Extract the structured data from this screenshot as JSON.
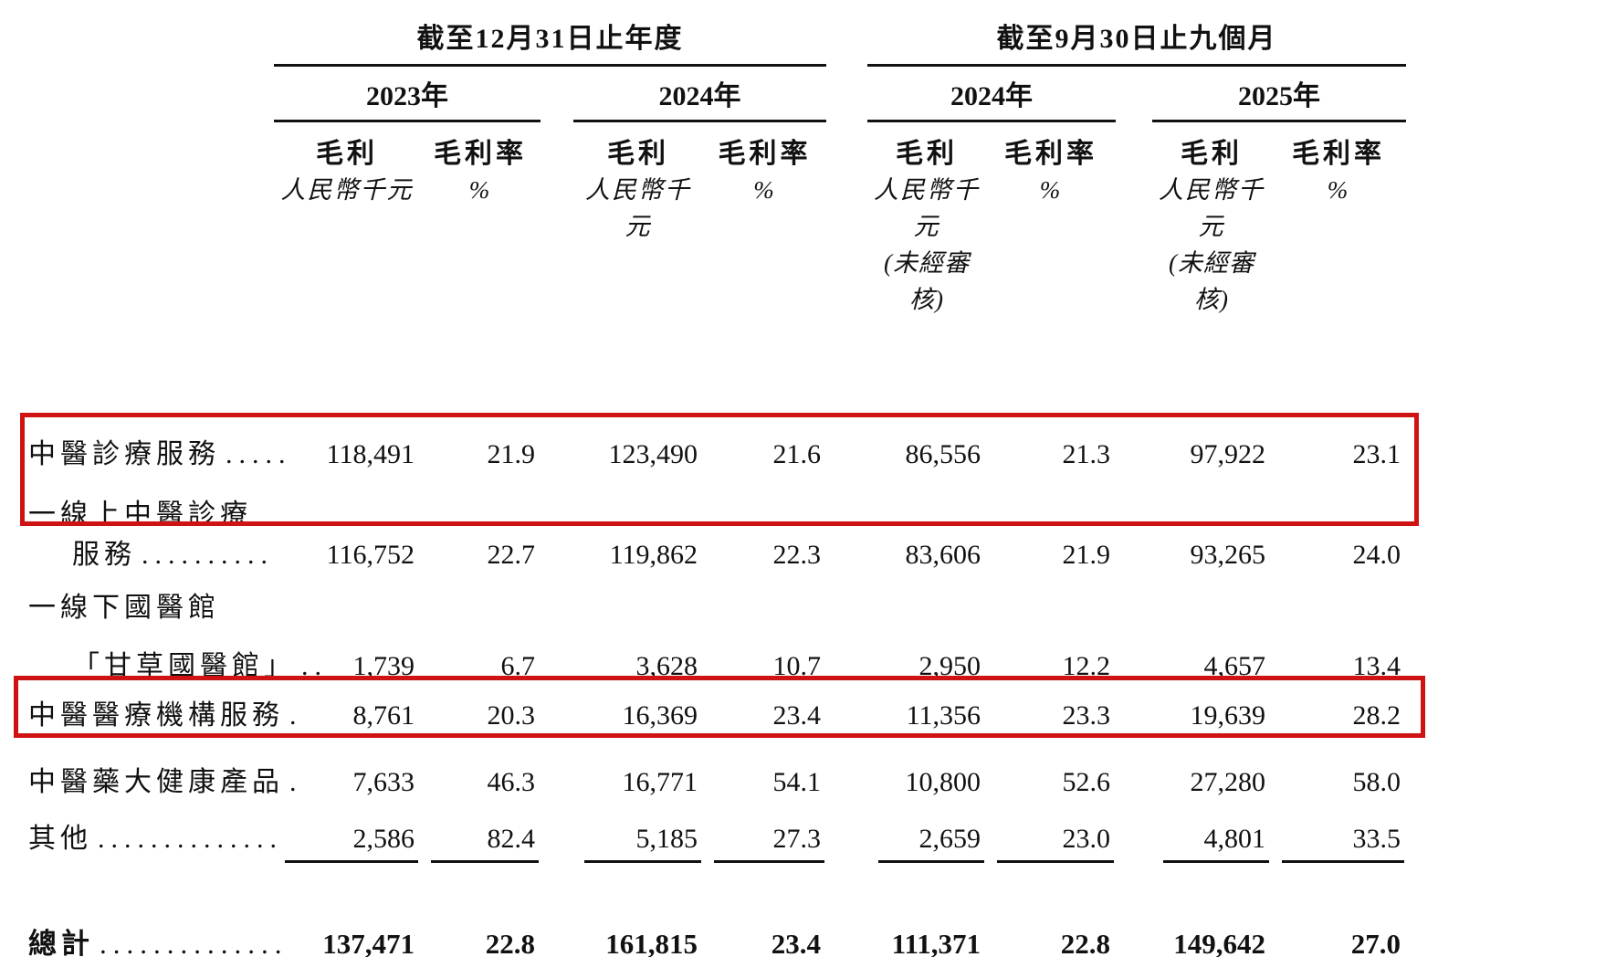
{
  "page": {
    "background": "#ffffff",
    "text_color": "#111111",
    "highlight_color": "#cf1312"
  },
  "header": {
    "group_left": "截至12月31日止年度",
    "group_right": "截至9月30日止九個月",
    "years": [
      "2023年",
      "2024年",
      "2024年",
      "2025年"
    ],
    "metric_gross_profit": "毛利",
    "metric_gross_margin": "毛利率",
    "unit_rmb": "人民幣千元",
    "unit_pct": "%",
    "unaudited_note": "(未經審核)"
  },
  "rows": [
    {
      "label": "中醫診療服務",
      "dots": ".....",
      "values": [
        "118,491",
        "21.9",
        "123,490",
        "21.6",
        "86,556",
        "21.3",
        "97,922",
        "23.1"
      ]
    },
    {
      "label": "一線上中醫診療",
      "dots": "",
      "values": null
    },
    {
      "label": "服務",
      "dots": "..........",
      "values": [
        "116,752",
        "22.7",
        "119,862",
        "22.3",
        "83,606",
        "21.9",
        "93,265",
        "24.0"
      ]
    },
    {
      "label": "一線下國醫館",
      "dots": "",
      "values": null
    },
    {
      "label": "「甘草國醫館」",
      "dots": "..",
      "values": [
        "1,739",
        "6.7",
        "3,628",
        "10.7",
        "2,950",
        "12.2",
        "4,657",
        "13.4"
      ]
    },
    {
      "label": "中醫醫療機構服務",
      "dots": ".",
      "values": [
        "8,761",
        "20.3",
        "16,369",
        "23.4",
        "11,356",
        "23.3",
        "19,639",
        "28.2"
      ]
    },
    {
      "label": "中醫藥大健康產品",
      "dots": ".",
      "values": [
        "7,633",
        "46.3",
        "16,771",
        "54.1",
        "10,800",
        "52.6",
        "27,280",
        "58.0"
      ]
    },
    {
      "label": "其他",
      "dots": "..............",
      "values": [
        "2,586",
        "82.4",
        "5,185",
        "27.3",
        "2,659",
        "23.0",
        "4,801",
        "33.5"
      ]
    }
  ],
  "total": {
    "label": "總計",
    "dots": "..............",
    "values": [
      "137,471",
      "22.8",
      "161,815",
      "23.4",
      "111,371",
      "22.8",
      "149,642",
      "27.0"
    ]
  }
}
